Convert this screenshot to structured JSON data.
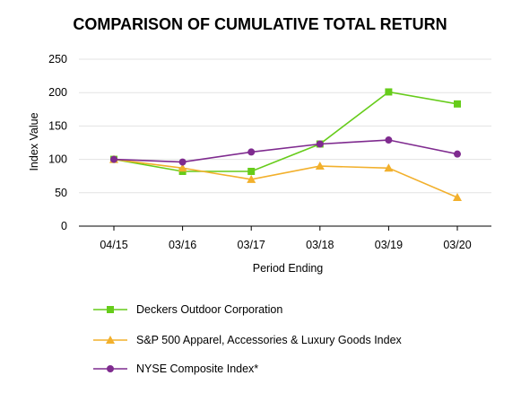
{
  "chart_data": {
    "type": "line",
    "title": "COMPARISON OF CUMULATIVE TOTAL RETURN",
    "xlabel": "Period Ending",
    "ylabel": "Index Value",
    "categories": [
      "04/15",
      "03/16",
      "03/17",
      "03/18",
      "03/19",
      "03/20"
    ],
    "ylim": [
      0,
      250
    ],
    "yticks": [
      "0",
      "50",
      "100",
      "150",
      "200",
      "250"
    ],
    "grid": true,
    "legend_position": "bottom",
    "series": [
      {
        "name": "Deckers Outdoor Corporation",
        "values": [
          100,
          82,
          82,
          123,
          201,
          183
        ],
        "color": "#66cc1a",
        "marker": "square"
      },
      {
        "name": "S&P 500 Apparel, Accessories & Luxury Goods Index",
        "values": [
          100,
          87,
          70,
          90,
          87,
          43
        ],
        "color": "#f2b02c",
        "marker": "triangle"
      },
      {
        "name": "NYSE Composite Index*",
        "values": [
          100,
          96,
          111,
          123,
          129,
          108
        ],
        "color": "#7f2b8f",
        "marker": "circle"
      }
    ]
  }
}
